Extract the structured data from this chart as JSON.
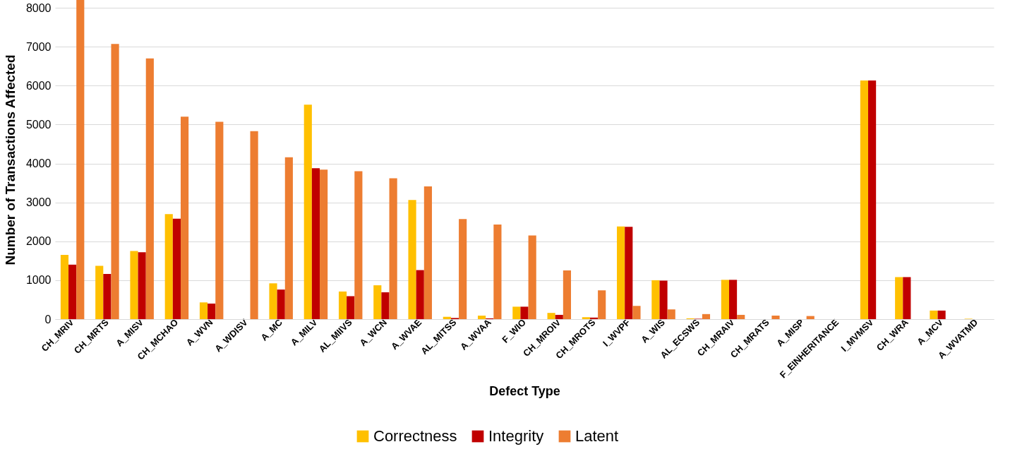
{
  "chart_data": {
    "type": "bar",
    "xlabel": "Defect Type",
    "ylabel": "Number of Transactions Affected",
    "categories": [
      "CH_MRIV",
      "CH_MRTS",
      "A_MISV",
      "CH_MCHAO",
      "A_WVN",
      "A_WDISV",
      "A_MC",
      "A_MILV",
      "AL_MIIVS",
      "A_WCN",
      "A_WVAE",
      "AL_MITSS",
      "A_WVAA",
      "F_WIO",
      "CH_MROIV",
      "CH_MROTS",
      "I_WVPF",
      "A_WIS",
      "AL_ECSWS",
      "CH_MRAIV",
      "CH_MRATS",
      "A_MISP",
      "F_EINHERITANCE",
      "I_MVMSV",
      "CH_WRA",
      "A_MCV",
      "A_WVATMD"
    ],
    "series": [
      {
        "name": "Correctness",
        "color": "#ffc000",
        "values": [
          1650,
          1370,
          1750,
          2700,
          430,
          0,
          920,
          5510,
          710,
          870,
          3060,
          60,
          90,
          320,
          160,
          50,
          2380,
          1000,
          20,
          1010,
          0,
          0,
          0,
          6130,
          1080,
          220,
          10
        ]
      },
      {
        "name": "Integrity",
        "color": "#c00000",
        "values": [
          1400,
          1160,
          1720,
          2580,
          400,
          0,
          760,
          3880,
          590,
          690,
          1260,
          30,
          20,
          320,
          110,
          40,
          2370,
          990,
          10,
          1010,
          0,
          0,
          0,
          6130,
          1080,
          220,
          0
        ]
      },
      {
        "name": "Latent",
        "color": "#ed7d31",
        "values": [
          8200,
          7070,
          6700,
          5200,
          5070,
          4830,
          4160,
          3840,
          3800,
          3620,
          3410,
          2570,
          2430,
          2150,
          1250,
          740,
          340,
          250,
          130,
          110,
          90,
          80,
          0,
          0,
          0,
          0,
          0
        ]
      }
    ],
    "ylim": [
      0,
      8200
    ],
    "yticks": [
      0,
      1000,
      2000,
      3000,
      4000,
      5000,
      6000,
      7000,
      8000
    ],
    "grid": "y",
    "legend": "bottom"
  }
}
